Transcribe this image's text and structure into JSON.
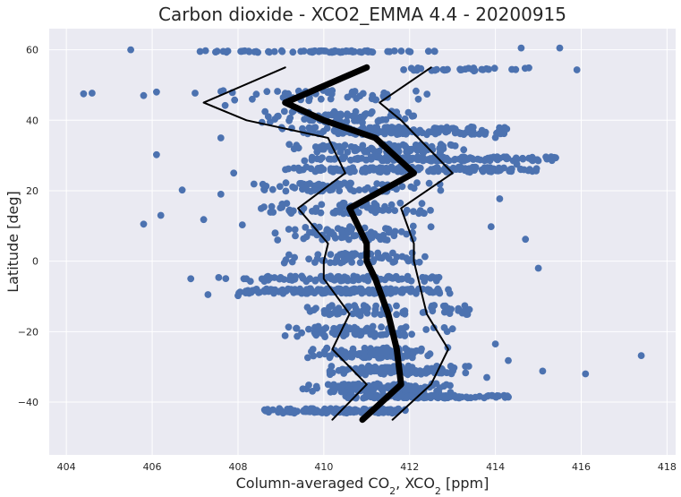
{
  "chart_data": {
    "type": "scatter",
    "title": "Carbon dioxide - XCO2_EMMA 4.4 - 20200915",
    "xlabel": "Column-averaged CO$_2$, XCO$_2$ [ppm]",
    "ylabel": "Latitude [deg]",
    "xlim": [
      403.6,
      418.2
    ],
    "ylim": [
      -55,
      66
    ],
    "xticks": [
      404,
      406,
      408,
      410,
      412,
      414,
      416,
      418
    ],
    "yticks": [
      -40,
      -20,
      0,
      20,
      40,
      60
    ],
    "grid": true,
    "legend": "none",
    "colors": {
      "background": "#eaeaf2",
      "grid": "#ffffff",
      "points": "#4c72b0",
      "lines": "#000000"
    },
    "series": [
      {
        "type": "line",
        "role": "mean",
        "x": [
          410.9,
          411.8,
          411.7,
          411.5,
          411.2,
          411.0,
          411.0,
          410.6,
          412.1,
          411.2,
          410.0,
          409.1,
          411.0
        ],
        "y": [
          -45,
          -35,
          -25,
          -15,
          -5,
          0,
          5,
          15,
          25,
          35,
          40,
          45,
          55
        ]
      },
      {
        "type": "line",
        "role": "lower",
        "x": [
          410.2,
          411.0,
          410.2,
          410.6,
          410.0,
          410.0,
          410.1,
          409.4,
          410.5,
          410.1,
          408.2,
          407.2,
          409.1
        ],
        "y": [
          -45,
          -35,
          -25,
          -15,
          -5,
          0,
          5,
          15,
          25,
          35,
          40,
          45,
          55
        ]
      },
      {
        "type": "line",
        "role": "upper",
        "x": [
          411.6,
          412.5,
          412.9,
          412.4,
          412.2,
          412.1,
          412.1,
          411.8,
          413.0,
          412.2,
          411.8,
          411.3,
          412.5
        ],
        "y": [
          -45,
          -35,
          -25,
          -15,
          -5,
          0,
          5,
          15,
          25,
          35,
          40,
          45,
          55
        ]
      },
      {
        "type": "scatter",
        "role": "outliers",
        "x": [
          404.4,
          404.6,
          405.5,
          405.8,
          405.8,
          406.1,
          406.1,
          406.2,
          406.7,
          406.9,
          407.0,
          407.2,
          407.3,
          407.6,
          407.6,
          407.7,
          407.9,
          408.0,
          408.1,
          414.6,
          415.0,
          415.1,
          415.5,
          415.9,
          416.1,
          417.4,
          414.7,
          414.3,
          414.0,
          413.8,
          414.2,
          414.0,
          413.9,
          414.3,
          414.5,
          414.1,
          415.2,
          413.3,
          413.5,
          413.0
        ],
        "y": [
          47.5,
          47.7,
          60.0,
          10.5,
          47.0,
          48.0,
          30.2,
          13.0,
          20.2,
          -5.0,
          47.7,
          11.8,
          -9.5,
          35.0,
          19.0,
          44.2,
          25.0,
          -9.8,
          10.3,
          60.5,
          -2.0,
          -31.2,
          60.5,
          54.3,
          -32.0,
          -26.8,
          6.2,
          -28.2,
          -23.5,
          -33.0,
          36.2,
          35.1,
          9.8,
          -38.6,
          27.5,
          17.7,
          29.0,
          54.5,
          54.0,
          -19.2
        ]
      }
    ],
    "bands": [
      {
        "y": 59.5,
        "x_range": [
          407.0,
          412.6
        ],
        "n": 70,
        "spread": 0.5
      },
      {
        "y": 54.5,
        "x_range": [
          411.6,
          414.9
        ],
        "n": 30,
        "spread": 0.8
      },
      {
        "y": 47,
        "x_range": [
          407.5,
          412.5
        ],
        "n": 50,
        "spread": 3.0
      },
      {
        "y": 41,
        "x_range": [
          408.5,
          412.3
        ],
        "n": 80,
        "spread": 3.5
      },
      {
        "y": 37,
        "x_range": [
          409.0,
          414.4
        ],
        "n": 150,
        "spread": 2.2
      },
      {
        "y": 32,
        "x_range": [
          409.0,
          413.5
        ],
        "n": 90,
        "spread": 2.5
      },
      {
        "y": 29,
        "x_range": [
          409.5,
          415.5
        ],
        "n": 150,
        "spread": 1.2
      },
      {
        "y": 26,
        "x_range": [
          409.0,
          415.0
        ],
        "n": 160,
        "spread": 1.5
      },
      {
        "y": 21,
        "x_range": [
          408.0,
          413.0
        ],
        "n": 80,
        "spread": 2.5
      },
      {
        "y": 15,
        "x_range": [
          408.5,
          412.6
        ],
        "n": 70,
        "spread": 3.0
      },
      {
        "y": 8,
        "x_range": [
          408.8,
          412.5
        ],
        "n": 70,
        "spread": 4.0
      },
      {
        "y": 1,
        "x_range": [
          409.0,
          412.5
        ],
        "n": 60,
        "spread": 3.0
      },
      {
        "y": -5,
        "x_range": [
          407.5,
          413.2
        ],
        "n": 90,
        "spread": 1.5
      },
      {
        "y": -8.5,
        "x_range": [
          408.0,
          413.0
        ],
        "n": 180,
        "spread": 1.4
      },
      {
        "y": -14,
        "x_range": [
          409.5,
          413.5
        ],
        "n": 80,
        "spread": 3.0
      },
      {
        "y": -20,
        "x_range": [
          409.0,
          413.0
        ],
        "n": 80,
        "spread": 3.0
      },
      {
        "y": -26,
        "x_range": [
          409.5,
          413.0
        ],
        "n": 90,
        "spread": 3.0
      },
      {
        "y": -31,
        "x_range": [
          410.0,
          413.5
        ],
        "n": 110,
        "spread": 2.5
      },
      {
        "y": -36,
        "x_range": [
          409.5,
          413.0
        ],
        "n": 120,
        "spread": 2.5
      },
      {
        "y": -38.5,
        "x_range": [
          410.5,
          414.3
        ],
        "n": 120,
        "spread": 0.8
      },
      {
        "y": -42.5,
        "x_range": [
          408.6,
          412.0
        ],
        "n": 150,
        "spread": 1.3
      }
    ]
  }
}
